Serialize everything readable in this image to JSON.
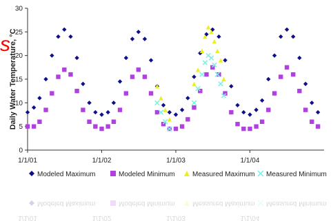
{
  "slide_fragment": "s",
  "chart_data": {
    "type": "scatter",
    "title": "",
    "xlabel": "",
    "ylabel": "Daily Water Temperature, °C",
    "ylim": [
      0,
      30
    ],
    "yticks": [
      "0",
      "5",
      "10",
      "15",
      "20",
      "25",
      "30"
    ],
    "xlim": [
      "2001-01-01",
      "2004-12-31"
    ],
    "xticks": [
      {
        "date": "2001-01-01",
        "label": "1/1/01"
      },
      {
        "date": "2002-01-01",
        "label": "1/1/02"
      },
      {
        "date": "2003-01-01",
        "label": "1/1/03"
      },
      {
        "date": "2004-01-01",
        "label": "1/1/04"
      }
    ],
    "grid": false,
    "legend_position": "bottom",
    "series": [
      {
        "name": "Modeled Maximum",
        "color": "#10108a",
        "marker": "diamond",
        "points": [
          [
            "2001-01-01",
            8.0
          ],
          [
            "2001-02-01",
            9.0
          ],
          [
            "2001-03-01",
            11.0
          ],
          [
            "2001-04-01",
            15.0
          ],
          [
            "2001-05-01",
            20.0
          ],
          [
            "2001-06-01",
            24.0
          ],
          [
            "2001-07-01",
            25.5
          ],
          [
            "2001-08-01",
            24.0
          ],
          [
            "2001-09-01",
            19.5
          ],
          [
            "2001-10-01",
            14.0
          ],
          [
            "2001-11-01",
            10.0
          ],
          [
            "2001-12-01",
            8.0
          ],
          [
            "2002-01-01",
            7.5
          ],
          [
            "2002-02-01",
            8.0
          ],
          [
            "2002-03-01",
            10.0
          ],
          [
            "2002-04-01",
            14.5
          ],
          [
            "2002-05-01",
            19.5
          ],
          [
            "2002-06-01",
            23.5
          ],
          [
            "2002-07-01",
            25.0
          ],
          [
            "2002-08-01",
            23.5
          ],
          [
            "2002-09-01",
            19.0
          ],
          [
            "2002-10-01",
            13.5
          ],
          [
            "2002-11-01",
            9.5
          ],
          [
            "2002-12-01",
            8.0
          ],
          [
            "2003-01-01",
            7.5
          ],
          [
            "2003-02-01",
            8.5
          ],
          [
            "2003-03-01",
            11.0
          ],
          [
            "2003-04-01",
            15.5
          ],
          [
            "2003-05-01",
            20.5
          ],
          [
            "2003-06-01",
            24.5
          ],
          [
            "2003-07-01",
            25.5
          ],
          [
            "2003-08-01",
            24.0
          ],
          [
            "2003-09-01",
            19.0
          ],
          [
            "2003-10-01",
            13.5
          ],
          [
            "2003-11-01",
            9.5
          ],
          [
            "2003-12-01",
            8.0
          ],
          [
            "2004-01-01",
            7.5
          ],
          [
            "2004-02-01",
            8.5
          ],
          [
            "2004-03-01",
            10.5
          ],
          [
            "2004-04-01",
            15.0
          ],
          [
            "2004-05-01",
            20.0
          ],
          [
            "2004-06-01",
            24.0
          ],
          [
            "2004-07-01",
            25.5
          ],
          [
            "2004-08-01",
            24.0
          ],
          [
            "2004-09-01",
            19.5
          ],
          [
            "2004-10-01",
            14.0
          ],
          [
            "2004-11-01",
            10.0
          ],
          [
            "2004-12-01",
            8.0
          ]
        ]
      },
      {
        "name": "Modeled Minimum",
        "color": "#b040e0",
        "marker": "square",
        "points": [
          [
            "2001-01-01",
            5.0
          ],
          [
            "2001-02-01",
            5.0
          ],
          [
            "2001-03-01",
            6.0
          ],
          [
            "2001-04-01",
            8.5
          ],
          [
            "2001-05-01",
            12.0
          ],
          [
            "2001-06-01",
            15.5
          ],
          [
            "2001-07-01",
            17.0
          ],
          [
            "2001-08-01",
            16.0
          ],
          [
            "2001-09-01",
            12.5
          ],
          [
            "2001-10-01",
            8.5
          ],
          [
            "2001-11-01",
            6.0
          ],
          [
            "2001-12-01",
            5.0
          ],
          [
            "2002-01-01",
            4.5
          ],
          [
            "2002-02-01",
            5.0
          ],
          [
            "2002-03-01",
            6.0
          ],
          [
            "2002-04-01",
            8.5
          ],
          [
            "2002-05-01",
            12.0
          ],
          [
            "2002-06-01",
            15.5
          ],
          [
            "2002-07-01",
            17.0
          ],
          [
            "2002-08-01",
            15.5
          ],
          [
            "2002-09-01",
            12.0
          ],
          [
            "2002-10-01",
            8.0
          ],
          [
            "2002-11-01",
            5.5
          ],
          [
            "2002-12-01",
            4.5
          ],
          [
            "2003-01-01",
            4.5
          ],
          [
            "2003-02-01",
            5.0
          ],
          [
            "2003-03-01",
            6.5
          ],
          [
            "2003-04-01",
            9.0
          ],
          [
            "2003-05-01",
            12.5
          ],
          [
            "2003-06-01",
            16.0
          ],
          [
            "2003-07-01",
            17.5
          ],
          [
            "2003-08-01",
            16.0
          ],
          [
            "2003-09-01",
            12.0
          ],
          [
            "2003-10-01",
            8.0
          ],
          [
            "2003-11-01",
            5.5
          ],
          [
            "2003-12-01",
            4.5
          ],
          [
            "2004-01-01",
            4.5
          ],
          [
            "2004-02-01",
            5.0
          ],
          [
            "2004-03-01",
            6.0
          ],
          [
            "2004-04-01",
            8.5
          ],
          [
            "2004-05-01",
            12.0
          ],
          [
            "2004-06-01",
            15.5
          ],
          [
            "2004-07-01",
            17.5
          ],
          [
            "2004-08-01",
            16.0
          ],
          [
            "2004-09-01",
            12.5
          ],
          [
            "2004-10-01",
            8.5
          ],
          [
            "2004-11-01",
            6.0
          ],
          [
            "2004-12-01",
            5.0
          ]
        ]
      },
      {
        "name": "Measured Maximum",
        "color": "#e8f020",
        "marker": "triangle",
        "points": [
          [
            "2002-10-01",
            13.5
          ],
          [
            "2002-10-20",
            11.0
          ],
          [
            "2002-11-10",
            8.5
          ],
          [
            "2002-12-01",
            6.5
          ],
          [
            "2003-04-01",
            14.0
          ],
          [
            "2003-04-20",
            17.0
          ],
          [
            "2003-05-10",
            21.0
          ],
          [
            "2003-05-25",
            24.0
          ],
          [
            "2003-06-10",
            26.0
          ],
          [
            "2003-06-25",
            25.0
          ],
          [
            "2003-07-10",
            23.0
          ],
          [
            "2003-07-25",
            21.0
          ],
          [
            "2003-08-10",
            19.0
          ],
          [
            "2003-08-25",
            15.0
          ]
        ]
      },
      {
        "name": "Measured Minimum",
        "color": "#80f0e8",
        "marker": "x",
        "points": [
          [
            "2002-10-01",
            10.0
          ],
          [
            "2002-10-20",
            8.0
          ],
          [
            "2002-11-10",
            6.0
          ],
          [
            "2002-12-01",
            4.5
          ],
          [
            "2003-04-01",
            10.0
          ],
          [
            "2003-04-20",
            13.0
          ],
          [
            "2003-05-10",
            16.0
          ],
          [
            "2003-05-25",
            18.5
          ],
          [
            "2003-06-10",
            20.0
          ],
          [
            "2003-06-25",
            19.5
          ],
          [
            "2003-07-10",
            18.0
          ],
          [
            "2003-07-25",
            16.0
          ],
          [
            "2003-08-10",
            14.0
          ],
          [
            "2003-08-25",
            11.5
          ]
        ]
      }
    ]
  }
}
